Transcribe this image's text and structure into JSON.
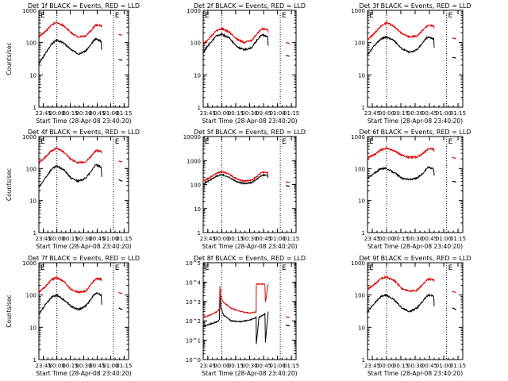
{
  "figure": {
    "xlabel": "Start Time (28-Apr-08 23:40:20)",
    "ylabel": "Counts/sec"
  },
  "chart_data": [
    {
      "type": "line",
      "title": "Det 1f BLACK = Events, RED = LLD",
      "ylim_log10": [
        0,
        3
      ],
      "ytick_labels": [
        "1",
        "10",
        "100",
        "1000"
      ],
      "x_tick_labels": [
        "23:45",
        "00:00",
        "00:15",
        "00:30",
        "00:45",
        "01:00",
        "01:15"
      ],
      "x_minutes_after_2340": [
        5,
        20,
        35,
        50,
        65,
        80,
        95
      ],
      "series": [
        {
          "color": "#000000",
          "x": [
            0,
            7,
            14,
            20,
            28,
            36,
            44,
            52,
            58,
            62,
            64,
            69.5,
            70
          ],
          "y": [
            22,
            45,
            90,
            120,
            95,
            60,
            45,
            55,
            85,
            125,
            130,
            110,
            60
          ],
          "after_gap": {
            "x": [
              89,
              93
            ],
            "y": [
              30,
              28
            ]
          }
        },
        {
          "color": "#e00000",
          "x": [
            0,
            7,
            14,
            20,
            28,
            36,
            44,
            52,
            58,
            62,
            64,
            69.5,
            70
          ],
          "y": [
            150,
            220,
            350,
            420,
            330,
            200,
            150,
            160,
            230,
            320,
            345,
            340,
            300
          ],
          "after_gap": {
            "x": [
              89,
              93
            ],
            "y": [
              180,
              170
            ]
          }
        }
      ]
    },
    {
      "type": "line",
      "title": "Det 2f BLACK = Events, RED = LLD",
      "ylim_log10": [
        0,
        3
      ],
      "ytick_labels": [
        "1",
        "10",
        "100",
        "1000"
      ],
      "x_tick_labels": [
        "23:45",
        "00:00",
        "00:15",
        "00:30",
        "00:45",
        "01:00",
        "01:15"
      ],
      "x_minutes_after_2340": [
        5,
        20,
        35,
        50,
        65,
        80,
        95
      ],
      "series": [
        {
          "color": "#000000",
          "x": [
            0,
            7,
            14,
            20,
            28,
            36,
            44,
            52,
            58,
            62,
            64,
            69.5,
            70
          ],
          "y": [
            50,
            95,
            160,
            180,
            140,
            75,
            60,
            70,
            120,
            165,
            175,
            150,
            80
          ],
          "after_gap": {
            "x": [
              89,
              93
            ],
            "y": [
              40,
              38
            ]
          }
        },
        {
          "color": "#e00000",
          "x": [
            0,
            7,
            14,
            20,
            28,
            36,
            44,
            52,
            58,
            62,
            64,
            69.5,
            70
          ],
          "y": [
            90,
            140,
            230,
            270,
            210,
            130,
            100,
            115,
            190,
            250,
            265,
            250,
            200
          ],
          "after_gap": {
            "x": [
              89,
              93
            ],
            "y": [
              100,
              95
            ]
          }
        }
      ]
    },
    {
      "type": "line",
      "title": "Det 3f BLACK = Events, RED = LLD",
      "ylim_log10": [
        0,
        3
      ],
      "ytick_labels": [
        "1",
        "10",
        "100",
        "1000"
      ],
      "x_tick_labels": [
        "23:45",
        "00:00",
        "00:15",
        "00:30",
        "00:45",
        "01:00",
        "01:15"
      ],
      "x_minutes_after_2340": [
        5,
        20,
        35,
        50,
        65,
        80,
        95
      ],
      "series": [
        {
          "color": "#000000",
          "x": [
            0,
            7,
            14,
            20,
            28,
            36,
            44,
            52,
            58,
            62,
            64,
            69.5,
            70
          ],
          "y": [
            40,
            80,
            130,
            150,
            115,
            65,
            50,
            60,
            100,
            140,
            150,
            130,
            70
          ],
          "after_gap": {
            "x": [
              89,
              93
            ],
            "y": [
              35,
              33
            ]
          }
        },
        {
          "color": "#e00000",
          "x": [
            0,
            7,
            14,
            20,
            28,
            36,
            44,
            52,
            58,
            62,
            64,
            69.5,
            70
          ],
          "y": [
            120,
            190,
            320,
            420,
            320,
            190,
            150,
            160,
            240,
            320,
            340,
            330,
            280
          ],
          "after_gap": {
            "x": [
              89,
              93
            ],
            "y": [
              140,
              130
            ]
          }
        }
      ]
    },
    {
      "type": "line",
      "title": "Det 4f BLACK = Events, RED = LLD",
      "ylim_log10": [
        0,
        3
      ],
      "ytick_labels": [
        "1",
        "10",
        "100",
        "1000"
      ],
      "x_tick_labels": [
        "23:45",
        "00:00",
        "00:15",
        "00:30",
        "00:45",
        "01:00",
        "01:15"
      ],
      "x_minutes_after_2340": [
        5,
        20,
        35,
        50,
        65,
        80,
        95
      ],
      "series": [
        {
          "color": "#000000",
          "x": [
            0,
            7,
            14,
            20,
            28,
            36,
            44,
            52,
            58,
            62,
            64,
            69.5,
            70
          ],
          "y": [
            25,
            50,
            95,
            120,
            90,
            50,
            40,
            50,
            80,
            120,
            130,
            110,
            55
          ],
          "after_gap": {
            "x": [
              89,
              93
            ],
            "y": [
              45,
              40
            ]
          }
        },
        {
          "color": "#e00000",
          "x": [
            0,
            7,
            14,
            20,
            28,
            36,
            44,
            52,
            58,
            62,
            64,
            69.5,
            70
          ],
          "y": [
            150,
            220,
            360,
            430,
            330,
            190,
            150,
            160,
            240,
            330,
            360,
            350,
            300
          ],
          "after_gap": {
            "x": [
              89,
              93
            ],
            "y": [
              170,
              160
            ]
          }
        }
      ]
    },
    {
      "type": "line",
      "title": "Det 5f BLACK = Events, RED = LLD",
      "ylim_log10": [
        0,
        4
      ],
      "ytick_labels": [
        "1",
        "10",
        "100",
        "1000",
        "10000"
      ],
      "x_tick_labels": [
        "23:45",
        "00:00",
        "00:15",
        "00:30",
        "00:45",
        "01:00",
        "01:15"
      ],
      "x_minutes_after_2340": [
        5,
        20,
        35,
        50,
        65,
        80,
        95
      ],
      "series": [
        {
          "color": "#000000",
          "x": [
            0,
            7,
            14,
            20,
            28,
            36,
            44,
            52,
            58,
            62,
            64,
            69.5,
            70
          ],
          "y": [
            110,
            150,
            220,
            260,
            200,
            130,
            110,
            120,
            170,
            230,
            250,
            240,
            190
          ],
          "after_gap": {
            "x": [
              89,
              93
            ],
            "y": [
              90,
              85
            ]
          }
        },
        {
          "color": "#e00000",
          "x": [
            0,
            7,
            14,
            20,
            28,
            36,
            44,
            52,
            58,
            62,
            64,
            69.5,
            70
          ],
          "y": [
            140,
            190,
            290,
            350,
            270,
            170,
            140,
            150,
            220,
            300,
            330,
            320,
            260
          ],
          "after_gap": {
            "x": [
              89,
              93
            ],
            "y": [
              130,
              125
            ]
          }
        }
      ]
    },
    {
      "type": "line",
      "title": "Det 6f BLACK = Events, RED = LLD",
      "ylim_log10": [
        0,
        3
      ],
      "ytick_labels": [
        "1",
        "10",
        "100",
        "1000"
      ],
      "x_tick_labels": [
        "23:45",
        "00:00",
        "00:15",
        "00:30",
        "00:45",
        "01:00",
        "01:15"
      ],
      "x_minutes_after_2340": [
        5,
        20,
        35,
        50,
        65,
        80,
        95
      ],
      "series": [
        {
          "color": "#000000",
          "x": [
            0,
            7,
            14,
            20,
            28,
            36,
            44,
            52,
            58,
            62,
            64,
            69.5,
            70
          ],
          "y": [
            50,
            70,
            100,
            100,
            75,
            50,
            45,
            50,
            70,
            100,
            110,
            100,
            60
          ],
          "after_gap": {
            "x": [
              89,
              93
            ],
            "y": [
              40,
              38
            ]
          }
        },
        {
          "color": "#e00000",
          "x": [
            0,
            7,
            14,
            20,
            28,
            36,
            44,
            52,
            58,
            62,
            64,
            69.5,
            70
          ],
          "y": [
            220,
            270,
            380,
            430,
            360,
            260,
            220,
            230,
            290,
            380,
            420,
            410,
            340
          ],
          "after_gap": {
            "x": [
              89,
              93
            ],
            "y": [
              220,
              210
            ]
          }
        }
      ]
    },
    {
      "type": "line",
      "title": "Det 7f BLACK = Events, RED = LLD",
      "ylim_log10": [
        0,
        3
      ],
      "ytick_labels": [
        "1",
        "10",
        "100",
        "1000"
      ],
      "x_tick_labels": [
        "23:45",
        "00:00",
        "00:15",
        "00:30",
        "00:45",
        "01:00",
        "01:15"
      ],
      "x_minutes_after_2340": [
        5,
        20,
        35,
        50,
        65,
        80,
        95
      ],
      "series": [
        {
          "color": "#000000",
          "x": [
            0,
            7,
            14,
            20,
            28,
            36,
            44,
            52,
            58,
            62,
            64,
            69.5,
            70
          ],
          "y": [
            25,
            50,
            85,
            100,
            70,
            45,
            35,
            45,
            75,
            105,
            115,
            100,
            50
          ],
          "after_gap": {
            "x": [
              89,
              93
            ],
            "y": [
              40,
              35
            ]
          }
        },
        {
          "color": "#e00000",
          "x": [
            0,
            7,
            14,
            20,
            28,
            36,
            44,
            52,
            58,
            62,
            64,
            69.5,
            70
          ],
          "y": [
            120,
            180,
            300,
            350,
            260,
            150,
            120,
            130,
            210,
            290,
            320,
            310,
            270
          ],
          "after_gap": {
            "x": [
              89,
              93
            ],
            "y": [
              120,
              110
            ]
          }
        }
      ]
    },
    {
      "type": "line",
      "title": "Det 8f BLACK = Events, RED = LLD",
      "ylim_log10": [
        0,
        5
      ],
      "ytick_labels": [
        "10^0",
        "10^1",
        "10^2",
        "10^3",
        "10^4",
        "10^5"
      ],
      "x_tick_labels": [
        "23:45",
        "00:00",
        "00:15",
        "00:30",
        "00:45",
        "01:00",
        "01:15"
      ],
      "x_minutes_after_2340": [
        5,
        20,
        35,
        50,
        65,
        80,
        95
      ],
      "series": [
        {
          "color": "#000000",
          "x": [
            0,
            8,
            15,
            17.5,
            18,
            19,
            22,
            30,
            40,
            50,
            56,
            57,
            57.2,
            60,
            66,
            66.5,
            67,
            70
          ],
          "y": [
            50,
            70,
            90,
            110,
            3000,
            450,
            200,
            100,
            90,
            110,
            140,
            160,
            6,
            150,
            220,
            260,
            8,
            300
          ],
          "after_gap": {
            "x": [
              89,
              93
            ],
            "y": [
              60,
              55
            ]
          }
        },
        {
          "color": "#e00000",
          "x": [
            0,
            8,
            15,
            17.5,
            18,
            19,
            22,
            30,
            40,
            50,
            56,
            57,
            57.2,
            60,
            66,
            66.5,
            67,
            70
          ],
          "y": [
            150,
            200,
            300,
            400,
            6000,
            1500,
            900,
            450,
            300,
            250,
            280,
            300,
            8000,
            8000,
            8000,
            7000,
            900,
            8000
          ],
          "after_gap": {
            "x": [
              89,
              93
            ],
            "y": [
              160,
              150
            ]
          }
        }
      ]
    },
    {
      "type": "line",
      "title": "Det 9f BLACK = Events, RED = LLD",
      "ylim_log10": [
        0,
        3
      ],
      "ytick_labels": [
        "1",
        "10",
        "100",
        "1000"
      ],
      "x_tick_labels": [
        "23:45",
        "00:00",
        "00:15",
        "00:30",
        "00:45",
        "01:00",
        "01:15"
      ],
      "x_minutes_after_2340": [
        5,
        20,
        35,
        50,
        65,
        80,
        95
      ],
      "series": [
        {
          "color": "#000000",
          "x": [
            0,
            7,
            14,
            20,
            28,
            36,
            44,
            52,
            58,
            62,
            64,
            69.5,
            70
          ],
          "y": [
            30,
            55,
            90,
            100,
            70,
            40,
            30,
            40,
            65,
            90,
            100,
            90,
            45
          ],
          "after_gap": {
            "x": [
              89,
              93
            ],
            "y": [
              40,
              35
            ]
          }
        },
        {
          "color": "#e00000",
          "x": [
            0,
            7,
            14,
            20,
            28,
            36,
            44,
            52,
            58,
            62,
            64,
            69.5,
            70
          ],
          "y": [
            150,
            210,
            320,
            360,
            280,
            160,
            130,
            140,
            210,
            290,
            310,
            300,
            260
          ],
          "after_gap": {
            "x": [
              89,
              93
            ],
            "y": [
              130,
              120
            ]
          }
        }
      ]
    }
  ]
}
